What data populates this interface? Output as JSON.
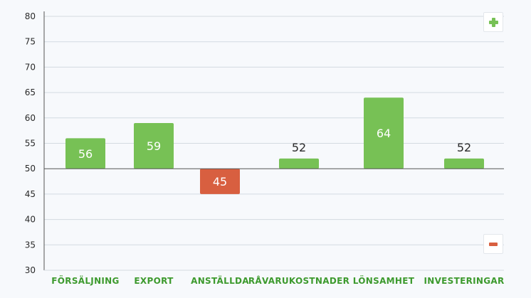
{
  "colors": {
    "positive": "#77c155",
    "negative": "#d85f40",
    "category_text": "#3d9a2e",
    "grid": "#d4dae1",
    "axis": "#555555",
    "value_on_bar": "#ffffff",
    "value_off_bar": "#2a2a2a"
  },
  "controls": {
    "plus_icon": "plus-icon",
    "minus_icon": "minus-icon"
  },
  "chart_data": {
    "type": "bar",
    "baseline": 50,
    "ylim": [
      30,
      80
    ],
    "yticks": [
      30,
      35,
      40,
      45,
      50,
      55,
      60,
      65,
      70,
      75,
      80
    ],
    "grid": true,
    "categories": [
      "FÖRSÄLJNING",
      "EXPORT",
      "ANSTÄLLDA",
      "RÅVARUKOSTNADER",
      "LÖNSAMHET",
      "INVESTERINGAR"
    ],
    "values": [
      56,
      59,
      45,
      52,
      64,
      52
    ],
    "title": "",
    "xlabel": "",
    "ylabel": ""
  }
}
